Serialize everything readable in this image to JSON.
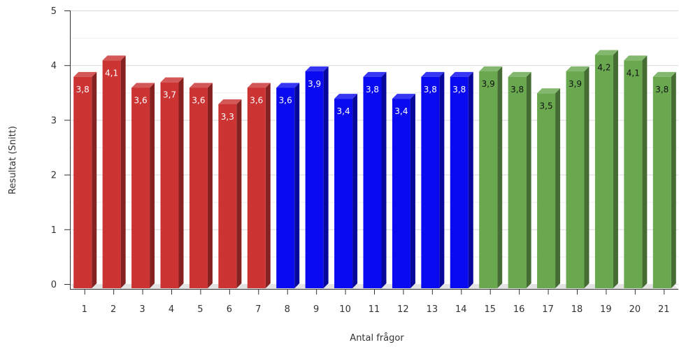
{
  "chart_data": {
    "type": "bar",
    "categories": [
      "1",
      "2",
      "3",
      "4",
      "5",
      "6",
      "7",
      "8",
      "9",
      "10",
      "11",
      "12",
      "13",
      "14",
      "15",
      "16",
      "17",
      "18",
      "19",
      "20",
      "21"
    ],
    "values": [
      3.8,
      4.1,
      3.6,
      3.7,
      3.6,
      3.3,
      3.6,
      3.6,
      3.9,
      3.4,
      3.8,
      3.4,
      3.8,
      3.8,
      3.9,
      3.8,
      3.5,
      3.9,
      4.2,
      4.1,
      3.8
    ],
    "value_labels": [
      "3,8",
      "4,1",
      "3,6",
      "3,7",
      "3,6",
      "3,3",
      "3,6",
      "3,6",
      "3,9",
      "3,4",
      "3,8",
      "3,4",
      "3,8",
      "3,8",
      "3,9",
      "3,8",
      "3,5",
      "3,9",
      "4,2",
      "4,1",
      "3,8"
    ],
    "colors": [
      "#cc3333",
      "#cc3333",
      "#cc3333",
      "#cc3333",
      "#cc3333",
      "#cc3333",
      "#cc3333",
      "#0a0af0",
      "#0a0af0",
      "#0a0af0",
      "#0a0af0",
      "#0a0af0",
      "#0a0af0",
      "#0a0af0",
      "#6aa84f",
      "#6aa84f",
      "#6aa84f",
      "#6aa84f",
      "#6aa84f",
      "#6aa84f",
      "#6aa84f"
    ],
    "label_colors": [
      "#ffffff",
      "#ffffff",
      "#ffffff",
      "#ffffff",
      "#ffffff",
      "#ffffff",
      "#ffffff",
      "#ffffff",
      "#ffffff",
      "#ffffff",
      "#ffffff",
      "#ffffff",
      "#ffffff",
      "#ffffff",
      "#111111",
      "#111111",
      "#111111",
      "#111111",
      "#111111",
      "#111111",
      "#111111"
    ],
    "xlabel": "Antal frågor",
    "ylabel": "Resultat (Snitt)",
    "ylim": [
      0,
      5
    ],
    "yticks": [
      "0",
      "1",
      "2",
      "3",
      "4",
      "5"
    ],
    "grid": true,
    "style": "3d"
  }
}
